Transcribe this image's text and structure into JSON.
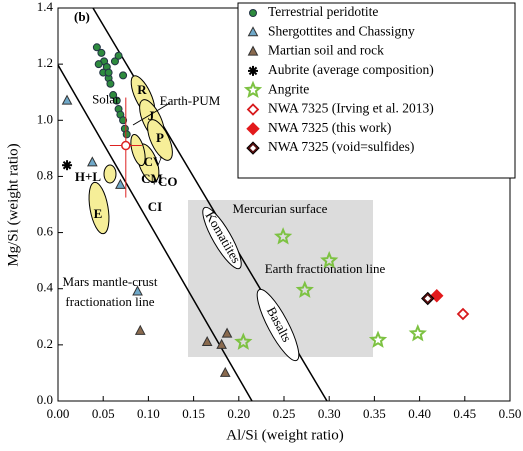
{
  "chart_data": {
    "type": "scatter",
    "panel": "(b)",
    "xlabel": "Al/Si (weight ratio)",
    "ylabel": "Mg/Si (weight ratio)",
    "xlim": [
      0,
      0.5
    ],
    "ylim": [
      0,
      1.4
    ],
    "xticks": [
      {
        "value": 0,
        "label": "0.00"
      },
      {
        "value": 0.05,
        "label": "0.05"
      },
      {
        "value": 0.1,
        "label": "0.10"
      },
      {
        "value": 0.15,
        "label": "0.15"
      },
      {
        "value": 0.2,
        "label": "0.20"
      },
      {
        "value": 0.25,
        "label": "0.25"
      },
      {
        "value": 0.3,
        "label": "0.30"
      },
      {
        "value": 0.35,
        "label": "0.35"
      },
      {
        "value": 0.4,
        "label": "0.40"
      },
      {
        "value": 0.45,
        "label": "0.45"
      },
      {
        "value": 0.5,
        "label": "0.50"
      }
    ],
    "yticks": [
      {
        "value": 0,
        "label": "0.0"
      },
      0.2,
      0.4,
      0.6,
      0.8,
      {
        "value": 1,
        "label": "1.0"
      },
      1.2,
      1.4
    ],
    "legend": "upper right",
    "series": [
      {
        "name": "Terrestrial peridotite",
        "color": "#2e8b3e",
        "marker": "circle",
        "x": [
          0.043,
          0.048,
          0.051,
          0.045,
          0.054,
          0.05,
          0.056,
          0.058,
          0.063,
          0.061,
          0.065,
          0.067,
          0.069,
          0.072,
          0.074,
          0.076,
          0.067,
          0.072,
          0.056
        ],
        "y": [
          1.26,
          1.24,
          1.21,
          1.2,
          1.19,
          1.17,
          1.15,
          1.13,
          1.21,
          1.09,
          1.07,
          1.04,
          1.02,
          1,
          0.97,
          0.95,
          1.23,
          1.16,
          1.17
        ]
      },
      {
        "name": "Shergottites and Chassigny",
        "color": "#6fa8c8",
        "marker": "triangle",
        "x": [
          0.01,
          0.038,
          0.069,
          0.088
        ],
        "y": [
          1.07,
          0.85,
          0.77,
          0.39
        ]
      },
      {
        "name": "Martian soil and rock",
        "color": "#8a6a4e",
        "marker": "triangle",
        "x": [
          0.091,
          0.165,
          0.181,
          0.187,
          0.185
        ],
        "y": [
          0.25,
          0.21,
          0.2,
          0.24,
          0.1
        ]
      },
      {
        "name": "Aubrite (average composition)",
        "color": "#000000",
        "marker": "asterisk",
        "x": [
          0.01
        ],
        "y": [
          0.84
        ]
      },
      {
        "name": "Angrite",
        "color": "#7dc242",
        "marker": "star",
        "x": [
          0.249,
          0.3,
          0.273,
          0.205,
          0.354,
          0.398
        ],
        "y": [
          0.585,
          0.5,
          0.395,
          0.21,
          0.217,
          0.24
        ]
      },
      {
        "name": "NWA 7325 (Irving et al. 2013)",
        "color": "#d7191c",
        "marker": "diamond-open",
        "x": [
          0.448
        ],
        "y": [
          0.31
        ]
      },
      {
        "name": "NWA 7325 (this work)",
        "color": "#e31a1c",
        "marker": "diamond",
        "x": [
          0.419
        ],
        "y": [
          0.375
        ]
      },
      {
        "name": "NWA 7325 (void=sulfides)",
        "color": "#5a1010",
        "marker": "diamond-split",
        "x": [
          0.409
        ],
        "y": [
          0.365
        ]
      }
    ],
    "solar": {
      "label": "Solar",
      "x": 0.075,
      "y": 0.91
    },
    "annotations": [
      "Earth-PUM",
      "R",
      "J",
      "P",
      "CV",
      "CM",
      "+CO",
      "CI",
      "H+L",
      "E",
      "Komatiites",
      "Basalts",
      "Mercurian surface",
      "Earth fractionation line",
      "Mars mantle-crust",
      "fractionation line"
    ]
  }
}
